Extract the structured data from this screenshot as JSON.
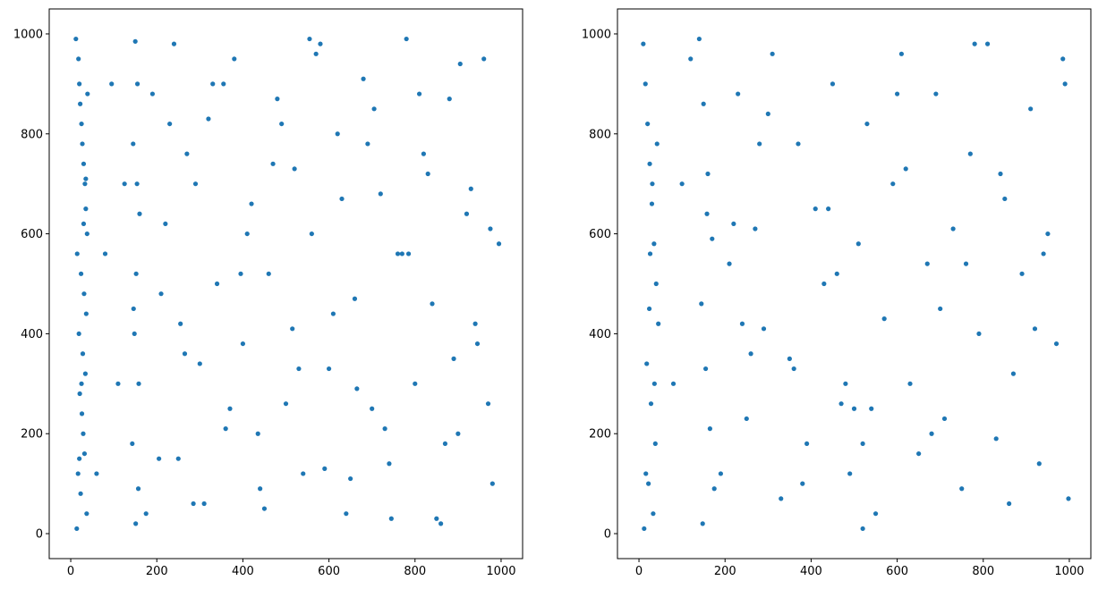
{
  "chart_data": [
    {
      "type": "scatter",
      "title": "",
      "xlabel": "",
      "ylabel": "",
      "xlim": [
        -50,
        1050
      ],
      "ylim": [
        -50,
        1050
      ],
      "x_ticks": [
        0,
        200,
        400,
        600,
        800,
        1000
      ],
      "y_ticks": [
        0,
        200,
        400,
        600,
        800,
        1000
      ],
      "x_tick_labels": [
        "0",
        "200",
        "400",
        "600",
        "800",
        "1000"
      ],
      "y_tick_labels": [
        "0",
        "200",
        "400",
        "600",
        "800",
        "1000"
      ],
      "grid": false,
      "marker_color": "#1f77b4",
      "series": [
        {
          "x": [
            12,
            18,
            20,
            22,
            25,
            27,
            30,
            33,
            35,
            38,
            15,
            24,
            31,
            36,
            19,
            28,
            34,
            21,
            26,
            29,
            32,
            17,
            23,
            37,
            14,
            39,
            30,
            25,
            20,
            35,
            150,
            155,
            145,
            160,
            152,
            148,
            158,
            143,
            157,
            151,
            154,
            146,
            60,
            80,
            95,
            110,
            125,
            175,
            190,
            205,
            220,
            240,
            255,
            270,
            285,
            300,
            320,
            340,
            360,
            380,
            400,
            420,
            440,
            460,
            480,
            500,
            520,
            540,
            560,
            580,
            600,
            620,
            640,
            660,
            680,
            700,
            720,
            740,
            760,
            780,
            800,
            820,
            840,
            860,
            880,
            900,
            920,
            940,
            960,
            980,
            995,
            230,
            265,
            310,
            355,
            395,
            435,
            470,
            515,
            555,
            590,
            630,
            665,
            705,
            745,
            785,
            830,
            870,
            905,
            945,
            975,
            210,
            250,
            290,
            330,
            370,
            410,
            450,
            490,
            530,
            570,
            610,
            650,
            690,
            730,
            770,
            810,
            850,
            890,
            930,
            970
          ],
          "y": [
            990,
            950,
            900,
            860,
            820,
            780,
            740,
            700,
            650,
            600,
            560,
            520,
            480,
            440,
            400,
            360,
            320,
            280,
            240,
            200,
            160,
            120,
            80,
            40,
            10,
            880,
            620,
            300,
            150,
            710,
            985,
            900,
            780,
            640,
            520,
            400,
            300,
            180,
            90,
            20,
            700,
            450,
            120,
            560,
            900,
            300,
            700,
            40,
            880,
            150,
            620,
            980,
            420,
            760,
            60,
            340,
            830,
            500,
            210,
            950,
            380,
            660,
            90,
            520,
            870,
            260,
            730,
            120,
            600,
            980,
            330,
            800,
            40,
            470,
            910,
            250,
            680,
            140,
            560,
            990,
            300,
            760,
            460,
            20,
            870,
            200,
            640,
            420,
            950,
            100,
            580,
            820,
            360,
            60,
            900,
            520,
            200,
            740,
            410,
            990,
            130,
            670,
            290,
            850,
            30,
            560,
            720,
            180,
            940,
            380,
            610,
            480,
            150,
            700,
            900,
            250,
            600,
            50,
            820,
            330,
            960,
            440,
            110,
            780,
            210,
            560,
            880,
            30,
            350,
            690,
            260
          ]
        }
      ]
    },
    {
      "type": "scatter",
      "title": "",
      "xlabel": "",
      "ylabel": "",
      "xlim": [
        -50,
        1050
      ],
      "ylim": [
        -50,
        1050
      ],
      "x_ticks": [
        0,
        200,
        400,
        600,
        800,
        1000
      ],
      "y_ticks": [
        0,
        200,
        400,
        600,
        800,
        1000
      ],
      "x_tick_labels": [
        "0",
        "200",
        "400",
        "600",
        "800",
        "1000"
      ],
      "y_tick_labels": [
        "0",
        "200",
        "400",
        "600",
        "800",
        "1000"
      ],
      "grid": false,
      "marker_color": "#1f77b4",
      "series": [
        {
          "x": [
            10,
            15,
            20,
            25,
            30,
            35,
            40,
            45,
            18,
            28,
            38,
            22,
            33,
            12,
            42,
            26,
            36,
            16,
            31,
            24,
            140,
            150,
            160,
            170,
            145,
            155,
            165,
            175,
            148,
            158,
            80,
            100,
            120,
            190,
            210,
            230,
            250,
            270,
            290,
            310,
            330,
            350,
            370,
            390,
            410,
            430,
            450,
            470,
            490,
            510,
            530,
            550,
            570,
            590,
            610,
            630,
            650,
            670,
            690,
            710,
            730,
            750,
            770,
            790,
            810,
            830,
            850,
            870,
            890,
            910,
            930,
            950,
            970,
            990,
            998,
            480,
            500,
            520,
            260,
            240,
            220,
            300,
            380,
            460,
            540,
            620,
            700,
            780,
            860,
            940,
            280,
            360,
            440,
            520,
            600,
            680,
            760,
            840,
            920,
            985
          ],
          "y": [
            980,
            900,
            820,
            740,
            660,
            580,
            500,
            420,
            340,
            260,
            180,
            100,
            40,
            10,
            780,
            560,
            300,
            120,
            700,
            450,
            990,
            860,
            720,
            590,
            460,
            330,
            210,
            90,
            20,
            640,
            300,
            700,
            950,
            120,
            540,
            880,
            230,
            610,
            410,
            960,
            70,
            350,
            780,
            180,
            650,
            500,
            900,
            260,
            120,
            580,
            820,
            40,
            430,
            700,
            960,
            300,
            160,
            540,
            880,
            230,
            610,
            90,
            760,
            400,
            980,
            190,
            670,
            320,
            520,
            850,
            140,
            600,
            380,
            900,
            70,
            300,
            250,
            180,
            360,
            420,
            620,
            840,
            100,
            520,
            250,
            730,
            450,
            980,
            60,
            560,
            780,
            330,
            650,
            10,
            880,
            200,
            540,
            720,
            410,
            950
          ]
        }
      ]
    }
  ]
}
